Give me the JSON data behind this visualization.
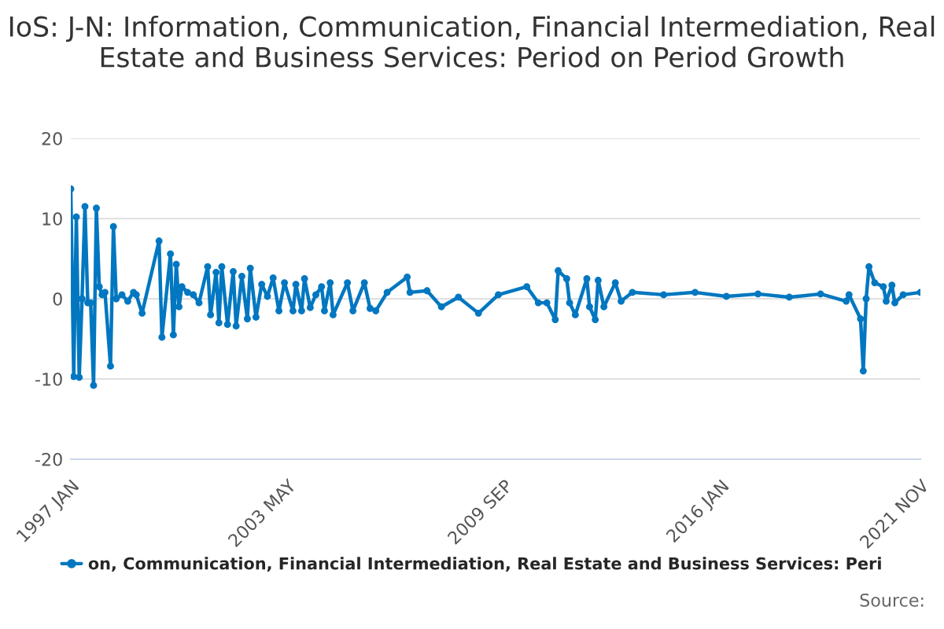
{
  "chart_data": {
    "type": "line",
    "title": "IoS: J-N: Information, Communication, Financial Intermediation, Real Estate and Business Services: Period on Period Growth",
    "annotations": [
      "Source:"
    ],
    "series": [
      {
        "name": "on, Communication, Financial Intermediation, Real Estate and Business Services: Peri",
        "color": "#0077c0",
        "x": [
          "1997-01",
          "1997-02",
          "1997-03",
          "1997-04",
          "1997-05",
          "1997-06",
          "1997-07",
          "1997-08",
          "1997-09",
          "1997-10",
          "1997-11",
          "1997-12",
          "1998-01",
          "1998-03",
          "1998-04",
          "1998-05",
          "1998-07",
          "1998-09",
          "1998-11",
          "1998-12",
          "1999-02",
          "1999-08",
          "1999-09",
          "1999-12",
          "2000-01",
          "2000-02",
          "2000-03",
          "2000-04",
          "2000-06",
          "2000-08",
          "2000-10",
          "2001-01",
          "2001-02",
          "2001-04",
          "2001-05",
          "2001-06",
          "2001-08",
          "2001-10",
          "2001-11",
          "2002-01",
          "2002-03",
          "2002-04",
          "2002-06",
          "2002-08",
          "2002-10",
          "2002-12",
          "2003-02",
          "2003-04",
          "2003-07",
          "2003-08",
          "2003-10",
          "2003-11",
          "2004-01",
          "2004-03",
          "2004-05",
          "2004-06",
          "2004-08",
          "2004-09",
          "2005-02",
          "2005-04",
          "2005-08",
          "2005-10",
          "2005-12",
          "2006-04",
          "2006-11",
          "2006-12",
          "2007-06",
          "2007-11",
          "2008-05",
          "2008-12",
          "2009-07",
          "2010-05",
          "2010-09",
          "2010-12",
          "2011-03",
          "2011-04",
          "2011-07",
          "2011-08",
          "2011-10",
          "2012-02",
          "2012-03",
          "2012-05",
          "2012-06",
          "2012-08",
          "2012-12",
          "2013-02",
          "2013-06",
          "2014-05",
          "2015-04",
          "2016-03",
          "2017-02",
          "2018-01",
          "2018-12",
          "2019-09",
          "2019-10",
          "2020-02",
          "2020-03",
          "2020-04",
          "2020-05",
          "2020-07",
          "2020-10",
          "2020-11",
          "2021-01",
          "2021-02",
          "2021-05",
          "2021-11"
        ],
        "values": [
          13.7,
          -9.7,
          10.2,
          -9.8,
          0,
          11.5,
          -0.5,
          -0.5,
          -10.8,
          11.3,
          1.5,
          0.5,
          0.8,
          -8.4,
          9.0,
          0,
          0.5,
          -0.3,
          0.8,
          0.5,
          -1.8,
          7.2,
          -4.8,
          5.6,
          -4.5,
          4.3,
          -1,
          1.5,
          0.8,
          0.5,
          -0.5,
          4,
          -2,
          3.3,
          -3,
          4,
          -3.2,
          3.4,
          -3.4,
          2.8,
          -2.5,
          3.8,
          -2.3,
          1.8,
          0.3,
          2.6,
          -1.5,
          2,
          -1.5,
          1.8,
          -1.5,
          2.5,
          -1.1,
          0.5,
          1.5,
          -1.5,
          2,
          -2,
          2,
          -1.5,
          2,
          -1.2,
          -1.5,
          0.8,
          2.7,
          0.8,
          1,
          -1,
          0.2,
          -1.8,
          0.5,
          1.5,
          -0.5,
          -0.5,
          -2.6,
          3.5,
          2.5,
          -0.5,
          -2,
          2.5,
          -1,
          -2.6,
          2.3,
          -1,
          2,
          -0.3,
          0.8,
          0.5,
          0.8,
          0.3,
          0.6,
          0.2,
          0.6,
          -0.3,
          0.5,
          -2.5,
          -9,
          0,
          4,
          2,
          1.5,
          -0.3,
          1.7,
          -0.5,
          0.5,
          0.8
        ]
      }
    ],
    "xlim": [
      "1997-01",
      "2021-11"
    ],
    "xticks": [
      {
        "value": "1997-01",
        "label": "1997 JAN"
      },
      {
        "value": "2003-05",
        "label": "2003 MAY"
      },
      {
        "value": "2009-09",
        "label": "2009 SEP"
      },
      {
        "value": "2016-01",
        "label": "2016 JAN"
      },
      {
        "value": "2021-11",
        "label": "2021 NOV"
      }
    ],
    "ylim": [
      -20,
      20
    ],
    "yticks": [
      -20,
      -10,
      0,
      10,
      20
    ],
    "grid": "y",
    "legend": "bottom",
    "marker": "circle",
    "line_style": "solid"
  }
}
